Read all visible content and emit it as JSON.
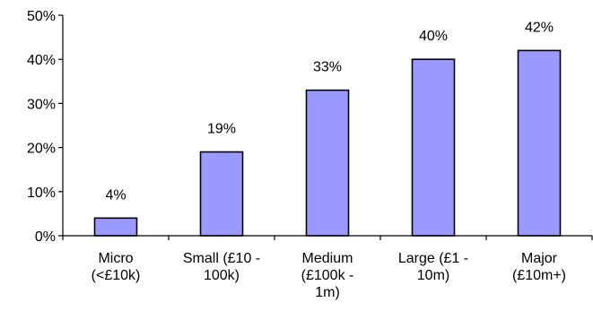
{
  "chart_data": {
    "type": "bar",
    "categories": [
      [
        "Micro",
        "(<£10k)"
      ],
      [
        "Small (£10 -",
        "100k)"
      ],
      [
        "Medium",
        "(£100k -",
        "1m)"
      ],
      [
        "Large (£1 -",
        "10m)"
      ],
      [
        "Major",
        "(£10m+)"
      ]
    ],
    "values": [
      4,
      19,
      33,
      40,
      42
    ],
    "data_labels": [
      "4%",
      "19%",
      "33%",
      "40%",
      "42%"
    ],
    "y_ticks": [
      "0%",
      "10%",
      "20%",
      "30%",
      "40%",
      "50%"
    ],
    "ylim": [
      0,
      50
    ],
    "grid": false,
    "bar_color": "#9999ff"
  }
}
